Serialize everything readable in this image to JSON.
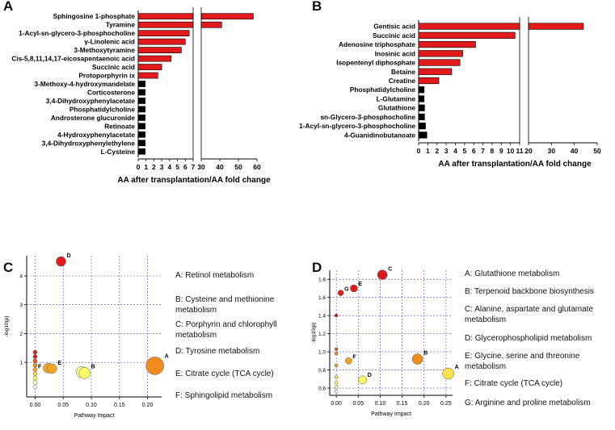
{
  "panels": {
    "A": {
      "letter": "A"
    },
    "B": {
      "letter": "B"
    },
    "C": {
      "letter": "C"
    },
    "D": {
      "letter": "D"
    }
  },
  "chart_data": [
    {
      "panel": "A",
      "type": "bar",
      "orientation": "horizontal",
      "xlabel": "AA after transplantation/AA fold change",
      "axis_break": {
        "from": 7,
        "to": 30
      },
      "xticks": [
        0,
        1,
        2,
        3,
        4,
        5,
        6,
        7,
        30,
        40,
        50,
        60
      ],
      "categories": [
        "Sphingosine 1-phosphate",
        "Tyramine",
        "1-Acyl-sn-glycero-3-phosphocholine",
        "γ-Linolenic acid",
        "3-Methoxytyramine",
        "Cis-5,8,11,14,17-eicosapentaenoic acid",
        "Succinic acid",
        "Protoporphyrin ix",
        "3-Methoxy-4-hydroxymandelate",
        "Corticosterone",
        "3,4-Dihydroxyphenylacetate",
        "Phosphatidylcholine",
        "Androsterone glucuronide",
        "Retinoate",
        "4-Hydroxyphenylacetate",
        "3,4-Dihydroxyphenylethylene",
        "L-Cysteine"
      ],
      "values": [
        58,
        41,
        6.5,
        6.0,
        5.5,
        4.2,
        3.0,
        2.5,
        0.9,
        0.9,
        0.9,
        0.9,
        0.9,
        0.9,
        0.9,
        0.9,
        0.9
      ],
      "colors": [
        "#e31a1c",
        "#e31a1c",
        "#e31a1c",
        "#e31a1c",
        "#e31a1c",
        "#e31a1c",
        "#e31a1c",
        "#e31a1c",
        "#000000",
        "#000000",
        "#000000",
        "#000000",
        "#000000",
        "#000000",
        "#000000",
        "#000000",
        "#000000"
      ]
    },
    {
      "panel": "B",
      "type": "bar",
      "orientation": "horizontal",
      "xlabel": "AA after transplantation/AA fold change",
      "axis_break": {
        "from": 11,
        "to": 20
      },
      "xticks": [
        0,
        1,
        2,
        3,
        4,
        5,
        6,
        7,
        8,
        9,
        10,
        11,
        20,
        30,
        40,
        50
      ],
      "categories": [
        "Gentisic acid",
        "Succinic acid",
        "Adenosine triphosphate",
        "Inosinic acid",
        "Isopentenyl diphosphate",
        "Betaine",
        "Creatine",
        "Phosphatidylcholine",
        "L-Glutamine",
        "Glutathione",
        "sn-Glycero-3-phosphocholine",
        "1-Acyl-sn-glycero-3-phosphocholine",
        "4-Guanidinobutanoate"
      ],
      "values": [
        44,
        10.5,
        6.2,
        4.8,
        4.5,
        3.6,
        2.2,
        0.6,
        0.6,
        0.65,
        0.65,
        0.75,
        0.9
      ],
      "colors": [
        "#e31a1c",
        "#e31a1c",
        "#e31a1c",
        "#e31a1c",
        "#e31a1c",
        "#e31a1c",
        "#e31a1c",
        "#000000",
        "#000000",
        "#000000",
        "#000000",
        "#000000",
        "#000000"
      ]
    },
    {
      "panel": "C",
      "type": "scatter",
      "xlabel": "Pathway Impact",
      "ylabel": "-log10(p)",
      "xlim": [
        -0.015,
        0.225
      ],
      "ylim": [
        -0.2,
        4.7
      ],
      "xticks": [
        "0.00",
        "0.05",
        "0.10",
        "0.15",
        "0.20"
      ],
      "yticks": [
        "1",
        "2",
        "3",
        "4"
      ],
      "grid": true,
      "points": [
        {
          "x": 0.046,
          "y": 4.5,
          "r": 6,
          "color": "#e31a1c",
          "label": "D"
        },
        {
          "x": 0.213,
          "y": 0.88,
          "r": 11,
          "color": "#f08c1e",
          "label": "A"
        },
        {
          "x": 0.083,
          "y": 0.66,
          "r": 7,
          "color": "#ffff99",
          "label": ""
        },
        {
          "x": 0.088,
          "y": 0.63,
          "r": 7,
          "color": "#ffff66",
          "label": "B"
        },
        {
          "x": 0.023,
          "y": 0.8,
          "r": 6,
          "color": "#f4a62a",
          "label": ""
        },
        {
          "x": 0.03,
          "y": 0.78,
          "r": 6,
          "color": "#f4a62a",
          "label": "E"
        },
        {
          "x": 0.0,
          "y": 1.35,
          "r": 2.5,
          "color": "#e31a1c",
          "label": ""
        },
        {
          "x": 0.0,
          "y": 1.2,
          "r": 2.5,
          "color": "#e31a1c",
          "label": ""
        },
        {
          "x": 0.0,
          "y": 1.05,
          "r": 2.5,
          "color": "#e8551f",
          "label": ""
        },
        {
          "x": 0.0,
          "y": 0.9,
          "r": 2.5,
          "color": "#f08c1e",
          "label": ""
        },
        {
          "x": 0.0,
          "y": 0.75,
          "r": 2.5,
          "color": "#f4a62a",
          "label": "F"
        },
        {
          "x": 0.0,
          "y": 0.6,
          "r": 2.5,
          "color": "#ffd84d",
          "label": ""
        },
        {
          "x": 0.0,
          "y": 0.45,
          "r": 2.5,
          "color": "#ffff66",
          "label": ""
        },
        {
          "x": 0.0,
          "y": 0.3,
          "r": 2.5,
          "color": "#ffffcc",
          "label": ""
        },
        {
          "x": 0.0,
          "y": 0.15,
          "r": 2.5,
          "color": "#ffffff",
          "label": ""
        }
      ],
      "legend": [
        "A: Retinol metabolism",
        "B: Cysteine and methionine metabolism",
        "C: Porphyrin and chlorophyll metabolism",
        "D: Tyrosine metabolism",
        "E:  Citrate cycle (TCA cycle)",
        "F: Sphingolipid metabolism"
      ]
    },
    {
      "panel": "D",
      "type": "scatter",
      "xlabel": "Pathway Impact",
      "ylabel": "-log10(p)",
      "xlim": [
        -0.015,
        0.265
      ],
      "ylim": [
        0.52,
        1.9
      ],
      "xticks": [
        "0.00",
        "0.05",
        "0.10",
        "0.15",
        "0.20",
        "0.25"
      ],
      "yticks": [
        "0.6",
        "0.8",
        "1.0",
        "1.2",
        "1.4",
        "1.6",
        "1.8"
      ],
      "grid": true,
      "points": [
        {
          "x": 0.105,
          "y": 1.85,
          "r": 6,
          "color": "#d7191c",
          "label": "C"
        },
        {
          "x": 0.04,
          "y": 1.7,
          "r": 4.5,
          "color": "#e31a1c",
          "label": "E"
        },
        {
          "x": 0.01,
          "y": 1.65,
          "r": 3.5,
          "color": "#e31a1c",
          "label": "G"
        },
        {
          "x": 0.185,
          "y": 0.92,
          "r": 6.5,
          "color": "#f08c1e",
          "label": "B"
        },
        {
          "x": 0.255,
          "y": 0.76,
          "r": 7,
          "color": "#ffe14d",
          "label": "A"
        },
        {
          "x": 0.028,
          "y": 0.9,
          "r": 4,
          "color": "#f4a62a",
          "label": "F"
        },
        {
          "x": 0.06,
          "y": 0.69,
          "r": 5,
          "color": "#ffff66",
          "label": "D"
        },
        {
          "x": 0.0,
          "y": 1.4,
          "r": 2,
          "color": "#e31a1c",
          "label": ""
        },
        {
          "x": 0.0,
          "y": 1.03,
          "r": 2,
          "color": "#e8551f",
          "label": ""
        },
        {
          "x": 0.0,
          "y": 0.98,
          "r": 2,
          "color": "#f08c1e",
          "label": ""
        },
        {
          "x": 0.0,
          "y": 0.85,
          "r": 2,
          "color": "#f4a62a",
          "label": ""
        },
        {
          "x": 0.0,
          "y": 0.72,
          "r": 2,
          "color": "#ffd84d",
          "label": ""
        },
        {
          "x": 0.0,
          "y": 0.66,
          "r": 2,
          "color": "#ffff66",
          "label": ""
        },
        {
          "x": 0.0,
          "y": 0.61,
          "r": 2,
          "color": "#ffffaa",
          "label": ""
        },
        {
          "x": 0.0,
          "y": 0.56,
          "r": 2,
          "color": "#ffffff",
          "label": ""
        }
      ],
      "legend": [
        "A: Glutathione metabolism",
        "B: Terpenoid backbone biosynthesis",
        "C: Alanine, aspartate and glutamate metabolism",
        "D: Glycerophospholipid metabolism",
        "E: Glycine, serine and threonine metabolism",
        "F:  Citrate cycle (TCA cycle)",
        "G: Arginine and proline metabolism"
      ]
    }
  ]
}
